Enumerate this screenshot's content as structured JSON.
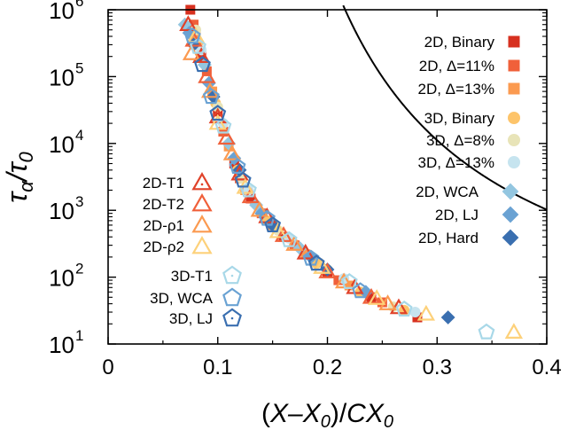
{
  "chart_data": {
    "type": "scatter",
    "xlabel": "(X–X0)/CX0",
    "ylabel": "τα/τ0",
    "xlim": [
      0,
      0.4
    ],
    "ylim": [
      10,
      1000000
    ],
    "y_scale": "log",
    "x_ticks": [
      "0",
      "0.1",
      "0.2",
      "0.3",
      "0.4"
    ],
    "y_ticks": [
      {
        "base": "10",
        "exp": "1",
        "value": 10
      },
      {
        "base": "10",
        "exp": "2",
        "value": 100
      },
      {
        "base": "10",
        "exp": "3",
        "value": 1000
      },
      {
        "base": "10",
        "exp": "4",
        "value": 10000
      },
      {
        "base": "10",
        "exp": "5",
        "value": 100000
      },
      {
        "base": "10",
        "exp": "6",
        "value": 1000000
      }
    ],
    "fit_curve": {
      "A": 0.6,
      "B": 0.8,
      "C": 0.068
    },
    "legend_top_right": [
      {
        "name": "2D, Binary",
        "marker": "square",
        "color": "#d7301f"
      },
      {
        "name": "2D, Δ=11%",
        "marker": "square",
        "color": "#f0603a"
      },
      {
        "name": "2D, Δ=13%",
        "marker": "square",
        "color": "#fb9a50"
      },
      {
        "name": "3D, Binary",
        "marker": "circle",
        "color": "#fdc46a"
      },
      {
        "name": "3D, Δ=8%",
        "marker": "circle",
        "color": "#e8e4b8"
      },
      {
        "name": "3D, Δ=13%",
        "marker": "circle",
        "color": "#c6e4ef"
      },
      {
        "name": "2D, WCA",
        "marker": "diamond",
        "color": "#93c6e0"
      },
      {
        "name": "2D, LJ",
        "marker": "diamond",
        "color": "#6aa2d3"
      },
      {
        "name": "2D, Hard",
        "marker": "diamond",
        "color": "#3a6fb0"
      }
    ],
    "legend_left": [
      {
        "name": "2D-T1",
        "marker": "triangle",
        "color": "#e0422a",
        "dot": true
      },
      {
        "name": "2D-T2",
        "marker": "triangle",
        "color": "#f0603a",
        "dot": false
      },
      {
        "name": "2D-ρ1",
        "marker": "triangle",
        "color": "#fb9a50",
        "dot": false
      },
      {
        "name": "2D-ρ2",
        "marker": "triangle",
        "color": "#fdd17a",
        "dot": false
      },
      {
        "name": "3D-T1",
        "marker": "pentagon",
        "color": "#a8d8e8",
        "dot": true
      },
      {
        "name": "3D, WCA",
        "marker": "pentagon",
        "color": "#6aa2d3",
        "dot": false
      },
      {
        "name": "3D, LJ",
        "marker": "pentagon",
        "color": "#3a6fb0",
        "dot": true
      }
    ],
    "series": [
      {
        "marker": "square",
        "color": "#d7301f",
        "points": [
          [
            0.075,
            1000000.0
          ],
          [
            0.085,
            200000.0
          ],
          [
            0.1,
            30000.0
          ],
          [
            0.115,
            5000.0
          ],
          [
            0.13,
            1500.0
          ],
          [
            0.16,
            400
          ],
          [
            0.2,
            120
          ],
          [
            0.24,
            50
          ],
          [
            0.282,
            25
          ]
        ]
      },
      {
        "marker": "square",
        "color": "#f0603a",
        "points": [
          [
            0.078,
            600000.0
          ],
          [
            0.09,
            120000.0
          ],
          [
            0.105,
            15000.0
          ],
          [
            0.12,
            3000.0
          ],
          [
            0.14,
            900
          ],
          [
            0.17,
            300
          ],
          [
            0.21,
            90
          ],
          [
            0.25,
            42
          ]
        ]
      },
      {
        "marker": "square",
        "color": "#fb9a50",
        "points": [
          [
            0.08,
            400000.0
          ],
          [
            0.095,
            60000.0
          ],
          [
            0.11,
            9000.0
          ],
          [
            0.125,
            2000.0
          ],
          [
            0.15,
            600
          ],
          [
            0.18,
            220
          ],
          [
            0.22,
            75
          ]
        ]
      },
      {
        "marker": "circle",
        "color": "#fdc46a",
        "points": [
          [
            0.082,
            300000.0
          ],
          [
            0.098,
            40000.0
          ],
          [
            0.118,
            4000.0
          ],
          [
            0.145,
            700
          ],
          [
            0.19,
            160
          ],
          [
            0.23,
            60
          ],
          [
            0.27,
            32
          ]
        ]
      },
      {
        "marker": "circle",
        "color": "#e8e4b8",
        "points": [
          [
            0.08,
            500000.0
          ],
          [
            0.1,
            35000.0
          ],
          [
            0.122,
            3000.0
          ],
          [
            0.155,
            500
          ],
          [
            0.2,
            130
          ],
          [
            0.26,
            36
          ]
        ]
      },
      {
        "marker": "circle",
        "color": "#c6e4ef",
        "points": [
          [
            0.085,
            250000.0
          ],
          [
            0.105,
            20000.0
          ],
          [
            0.128,
            2000.0
          ],
          [
            0.165,
            380
          ],
          [
            0.215,
            95
          ],
          [
            0.28,
            30
          ]
        ]
      },
      {
        "marker": "diamond",
        "color": "#93c6e0",
        "points": [
          [
            0.07,
            600000.0
          ],
          [
            0.088,
            150000.0
          ],
          [
            0.11,
            10000.0
          ],
          [
            0.135,
            1200.0
          ],
          [
            0.175,
            270
          ]
        ]
      },
      {
        "marker": "diamond",
        "color": "#6aa2d3",
        "points": [
          [
            0.074,
            450000.0
          ],
          [
            0.092,
            80000.0
          ],
          [
            0.115,
            6000.0
          ],
          [
            0.14,
            900
          ],
          [
            0.185,
            200
          ],
          [
            0.235,
            60
          ]
        ]
      },
      {
        "marker": "diamond",
        "color": "#3a6fb0",
        "points": [
          [
            0.078,
            300000.0
          ],
          [
            0.096,
            50000.0
          ],
          [
            0.12,
            4000.0
          ],
          [
            0.15,
            600
          ],
          [
            0.2,
            130
          ],
          [
            0.31,
            25
          ]
        ]
      },
      {
        "marker": "triangle",
        "color": "#e0422a",
        "points": [
          [
            0.073,
            600000.0
          ],
          [
            0.085,
            200000.0
          ],
          [
            0.1,
            25000.0
          ],
          [
            0.12,
            3500.0
          ],
          [
            0.145,
            800
          ],
          [
            0.18,
            230
          ],
          [
            0.225,
            70
          ],
          [
            0.265,
            35
          ]
        ]
      },
      {
        "marker": "triangle",
        "color": "#f0603a",
        "points": [
          [
            0.078,
            350000.0
          ],
          [
            0.09,
            100000.0
          ],
          [
            0.108,
            12000.0
          ],
          [
            0.13,
            1600.0
          ],
          [
            0.16,
            420
          ],
          [
            0.2,
            120
          ],
          [
            0.24,
            50
          ]
        ]
      },
      {
        "marker": "triangle",
        "color": "#fb9a50",
        "points": [
          [
            0.076,
            220000.0
          ],
          [
            0.093,
            60000.0
          ],
          [
            0.113,
            7000.0
          ],
          [
            0.138,
            1000.0
          ],
          [
            0.17,
            310
          ],
          [
            0.215,
            85
          ],
          [
            0.255,
            40
          ]
        ]
      },
      {
        "marker": "triangle",
        "color": "#fdd17a",
        "points": [
          [
            0.08,
            400000.0
          ],
          [
            0.1,
            20000.0
          ],
          [
            0.125,
            2200.0
          ],
          [
            0.155,
            480
          ],
          [
            0.195,
            140
          ],
          [
            0.245,
            48
          ],
          [
            0.29,
            28
          ],
          [
            0.37,
            15
          ]
        ]
      },
      {
        "marker": "pentagon",
        "color": "#a8d8e8",
        "points": [
          [
            0.082,
            280000.0
          ],
          [
            0.105,
            18000.0
          ],
          [
            0.128,
            2000.0
          ],
          [
            0.165,
            360
          ],
          [
            0.22,
            85
          ],
          [
            0.27,
            33
          ],
          [
            0.345,
            15
          ]
        ]
      },
      {
        "marker": "pentagon",
        "color": "#6aa2d3",
        "points": [
          [
            0.077,
            400000.0
          ],
          [
            0.094,
            50000.0
          ],
          [
            0.118,
            4500.0
          ],
          [
            0.145,
            750
          ],
          [
            0.185,
            190
          ],
          [
            0.23,
            62
          ]
        ]
      },
      {
        "marker": "pentagon",
        "color": "#3a6fb0",
        "points": [
          [
            0.086,
            150000.0
          ],
          [
            0.1,
            28000.0
          ],
          [
            0.123,
            2800.0
          ],
          [
            0.15,
            600
          ],
          [
            0.19,
            160
          ]
        ]
      }
    ]
  }
}
